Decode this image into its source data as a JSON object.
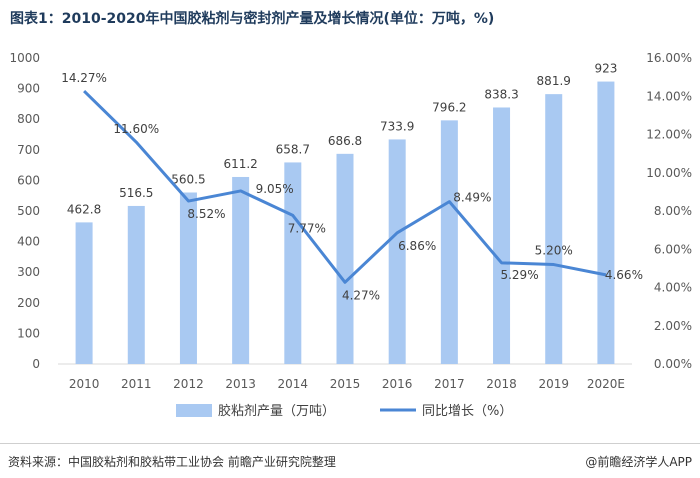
{
  "title": "图表1：2010-2020年中国胶粘剂与密封剂产量及增长情况(单位：万吨，%)",
  "source": "资料来源：中国胶粘剂和胶粘带工业协会 前瞻产业研究院整理",
  "credit": "@前瞻经济学人APP",
  "colors": {
    "bar": "#a9c9f2",
    "line": "#4a86d4",
    "axis": "#d9d9d9",
    "text": "#595959"
  },
  "chart_data": {
    "type": "bar+line",
    "categories": [
      "2010",
      "2011",
      "2012",
      "2013",
      "2014",
      "2015",
      "2016",
      "2017",
      "2018",
      "2019",
      "2020E"
    ],
    "series": [
      {
        "name": "胶粘剂产量（万吨）",
        "type": "bar",
        "axis": "left",
        "values": [
          462.8,
          516.5,
          560.5,
          611.2,
          658.7,
          686.8,
          733.9,
          796.2,
          838.3,
          881.9,
          923
        ],
        "labels": [
          "462.8",
          "516.5",
          "560.5",
          "611.2",
          "658.7",
          "686.8",
          "733.9",
          "796.2",
          "838.3",
          "881.9",
          "923"
        ]
      },
      {
        "name": "同比增长（%）",
        "type": "line",
        "axis": "right",
        "values": [
          14.27,
          11.6,
          8.52,
          9.05,
          7.77,
          4.27,
          6.86,
          8.49,
          5.29,
          5.2,
          4.66
        ],
        "labels": [
          "14.27%",
          "11.60%",
          "8.52%",
          "9.05%",
          "7.77%",
          "4.27%",
          "6.86%",
          "8.49%",
          "5.29%",
          "5.20%",
          "4.66%"
        ]
      }
    ],
    "y_left": {
      "min": 0,
      "max": 1000,
      "ticks": [
        "0",
        "100",
        "200",
        "300",
        "400",
        "500",
        "600",
        "700",
        "800",
        "900",
        "1000"
      ]
    },
    "y_right": {
      "min": 0,
      "max": 16,
      "ticks": [
        "0.00%",
        "2.00%",
        "4.00%",
        "6.00%",
        "8.00%",
        "10.00%",
        "12.00%",
        "14.00%",
        "16.00%"
      ]
    },
    "legend": [
      "胶粘剂产量（万吨）",
      "同比增长（%）"
    ],
    "legend_position": "bottom",
    "grid": false
  }
}
